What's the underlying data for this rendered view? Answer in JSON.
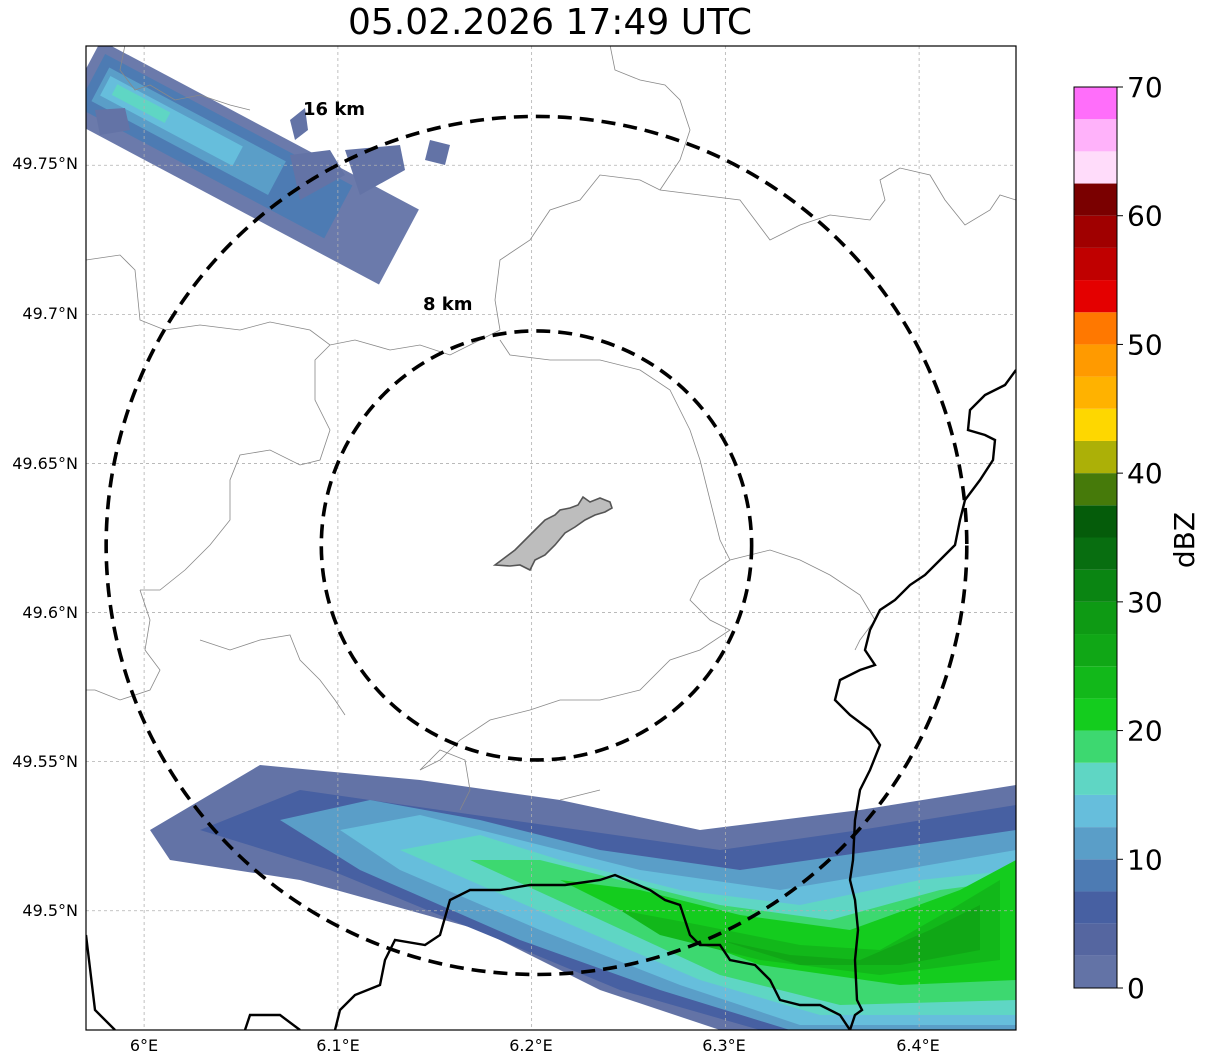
{
  "map": {
    "title": "05.02.2026 17:49 UTC",
    "lon_ticks": [
      "6°E",
      "6.1°E",
      "6.2°E",
      "6.3°E",
      "6.4°E"
    ],
    "lat_ticks": [
      "49.75°N",
      "49.7°N",
      "49.65°N",
      "49.6°N",
      "49.55°N",
      "49.5°N"
    ],
    "range_rings": [
      {
        "label": "8 km",
        "radius_km": 8
      },
      {
        "label": "16 km",
        "radius_km": 16
      }
    ],
    "extent": {
      "lon": [
        5.97,
        6.45
      ],
      "lat": [
        49.46,
        49.79
      ]
    },
    "center": {
      "lon": 6.2025,
      "lat": 49.6225
    },
    "grid": true
  },
  "colorbar": {
    "label": "dBZ",
    "ticks": [
      "0",
      "10",
      "20",
      "30",
      "40",
      "50",
      "60",
      "70"
    ],
    "range": [
      0,
      70
    ],
    "colors": [
      "#6373a6",
      "#5566a0",
      "#4760a2",
      "#4d7bb3",
      "#5a9ec8",
      "#66bedc",
      "#5fd6c4",
      "#3dd870",
      "#14cc1e",
      "#12b81a",
      "#10a716",
      "#0e9a14",
      "#0a8512",
      "#086e10",
      "#055c0a",
      "#467a0a",
      "#acb007",
      "#fed700",
      "#ffb200",
      "#ff9a00",
      "#ff7800",
      "#e40000",
      "#c00000",
      "#a00000",
      "#7a0000",
      "#ffdcfa",
      "#ffb2fa",
      "#ff6efa",
      "#ee30ee"
    ]
  }
}
